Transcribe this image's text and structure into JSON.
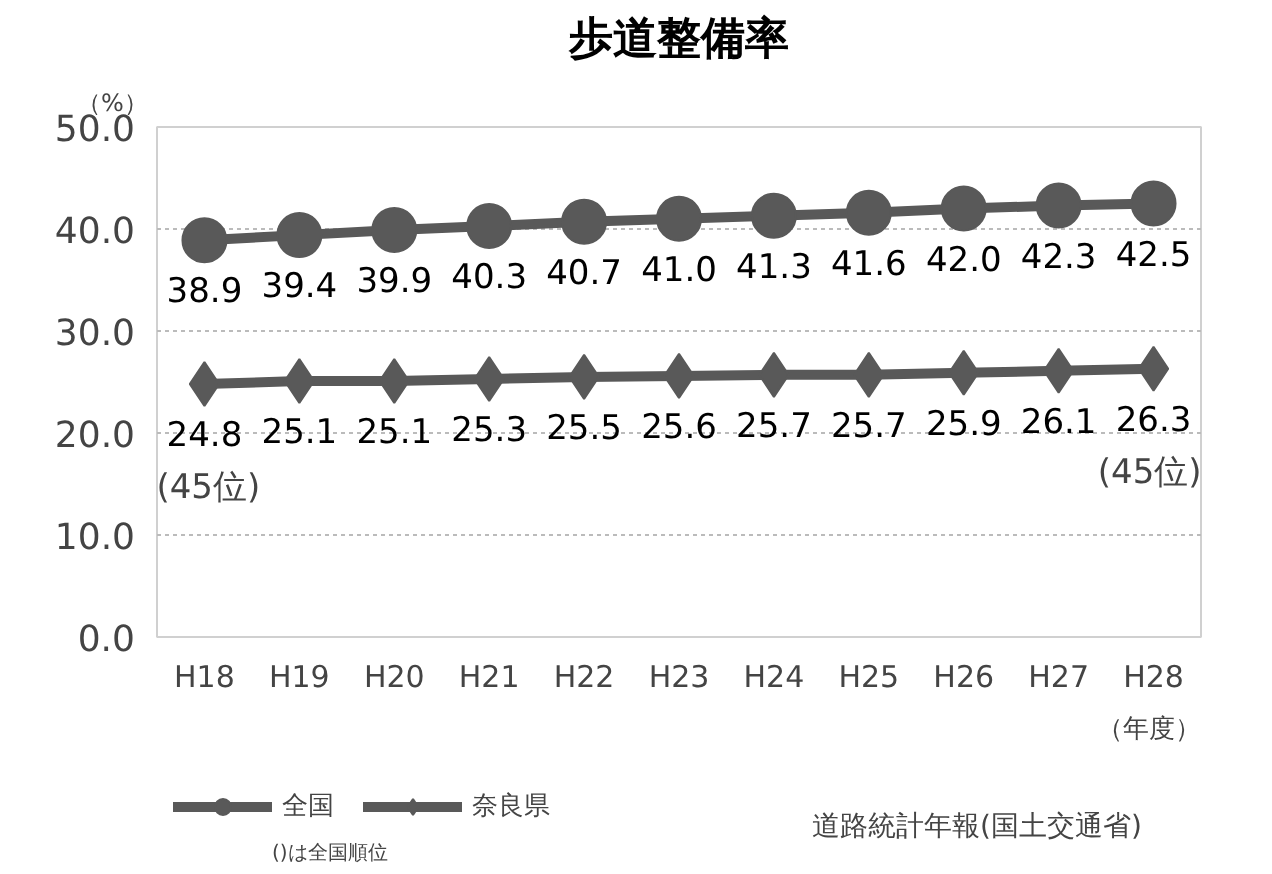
{
  "chart_data": {
    "type": "line",
    "title": "歩道整備率",
    "ylabel": "（%）",
    "xlabel": "（年度）",
    "categories": [
      "H18",
      "H19",
      "H20",
      "H21",
      "H22",
      "H23",
      "H24",
      "H25",
      "H26",
      "H27",
      "H28"
    ],
    "ylim": [
      0,
      50
    ],
    "yticks": [
      {
        "value": 0,
        "label": "0.0"
      },
      {
        "value": 10,
        "label": "10.0"
      },
      {
        "value": 20,
        "label": "20.0"
      },
      {
        "value": 30,
        "label": "30.0"
      },
      {
        "value": 40,
        "label": "40.0"
      },
      {
        "value": 50,
        "label": "50.0"
      }
    ],
    "grid": "y",
    "legend": "bottom left",
    "line_style": "solid",
    "series": [
      {
        "name": "全国",
        "color": "#595959",
        "marker": "circle",
        "values": [
          38.9,
          39.4,
          39.9,
          40.3,
          40.7,
          41.0,
          41.3,
          41.6,
          42.0,
          42.3,
          42.5
        ],
        "value_labels": [
          "38.9",
          "39.4",
          "39.9",
          "40.3",
          "40.7",
          "41.0",
          "41.3",
          "41.6",
          "42.0",
          "42.3",
          "42.5"
        ]
      },
      {
        "name": "奈良県",
        "color": "#595959",
        "marker": "diamond",
        "values": [
          24.8,
          25.1,
          25.1,
          25.3,
          25.5,
          25.6,
          25.7,
          25.7,
          25.9,
          26.1,
          26.3
        ],
        "value_labels": [
          "24.8",
          "25.1",
          "25.1",
          "25.3",
          "25.5",
          "25.6",
          "25.7",
          "25.7",
          "25.9",
          "26.1",
          "26.3"
        ]
      }
    ],
    "annotations": [
      {
        "text": "(45位)",
        "x": "H18",
        "y": 24.8
      },
      {
        "text": "(45位)",
        "x": "H28",
        "y": 26.3
      },
      "()は全国順位",
      "道路統計年報(国土交通省)"
    ]
  }
}
